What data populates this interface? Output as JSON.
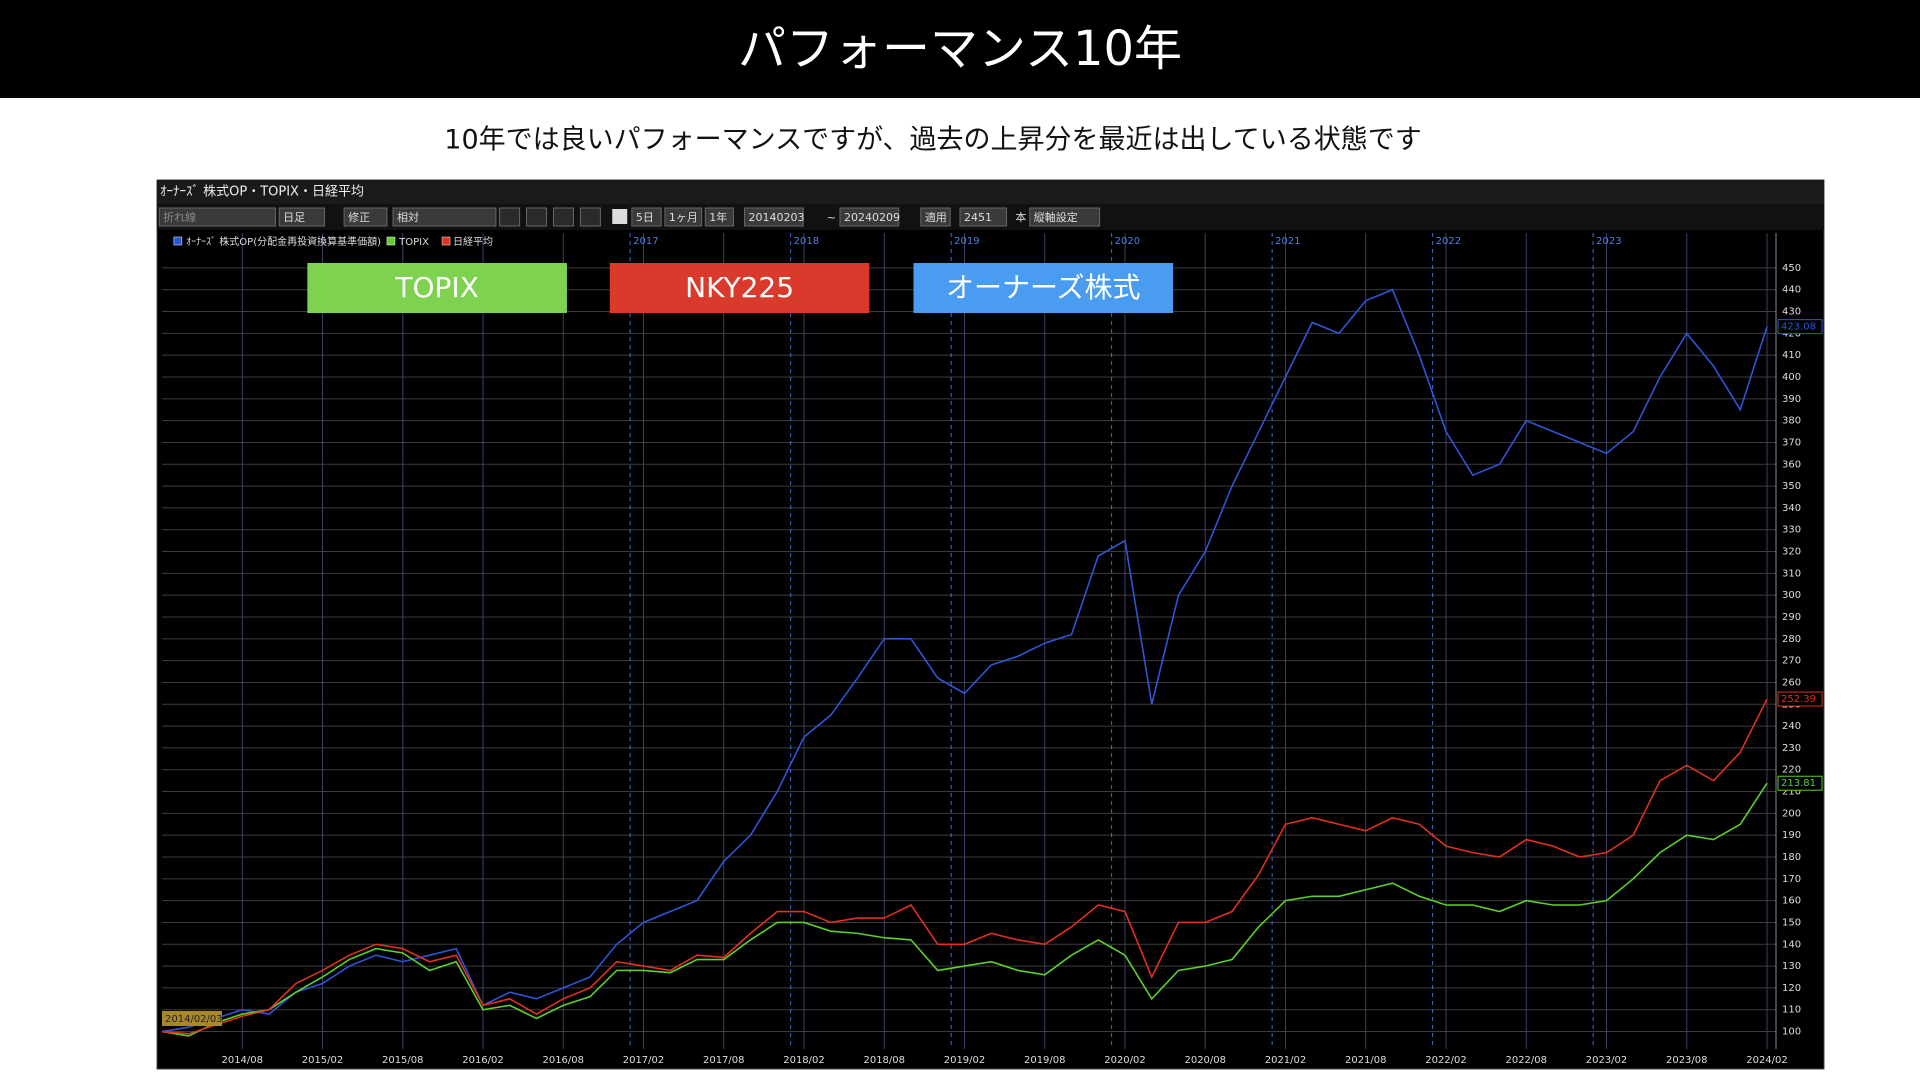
{
  "slide": {
    "title": "パフォーマンス10年",
    "subtitle": "10年では良いパフォーマンスですが、過去の上昇分を最近は出している状態です"
  },
  "window": {
    "title": "ｵｰﾅｰｽﾞ 株式OP・TOPIX・日経平均",
    "toolbar": [
      "折れ線",
      "日足",
      "修正",
      "相対",
      "5日",
      "1ヶ月",
      "1年",
      "20140203",
      "~",
      "20240209",
      "適用",
      "2451",
      "本",
      "縦軸設定"
    ]
  },
  "chart_data": {
    "type": "line",
    "x": [
      "2014/02",
      "2014/04",
      "2014/06",
      "2014/08",
      "2014/10",
      "2014/12",
      "2015/02",
      "2015/04",
      "2015/06",
      "2015/08",
      "2015/10",
      "2015/12",
      "2016/02",
      "2016/04",
      "2016/06",
      "2016/08",
      "2016/10",
      "2016/12",
      "2017/02",
      "2017/04",
      "2017/06",
      "2017/08",
      "2017/10",
      "2017/12",
      "2018/02",
      "2018/04",
      "2018/06",
      "2018/08",
      "2018/10",
      "2018/12",
      "2019/02",
      "2019/04",
      "2019/06",
      "2019/08",
      "2019/10",
      "2019/12",
      "2020/02",
      "2020/04",
      "2020/06",
      "2020/08",
      "2020/10",
      "2020/12",
      "2021/02",
      "2021/04",
      "2021/06",
      "2021/08",
      "2021/10",
      "2021/12",
      "2022/02",
      "2022/04",
      "2022/06",
      "2022/08",
      "2022/10",
      "2022/12",
      "2023/02",
      "2023/04",
      "2023/06",
      "2023/08",
      "2023/10",
      "2023/12",
      "2024/02"
    ],
    "series": [
      {
        "name": "ｵｰﾅｰｽﾞ 株式OP(分配金再投資換算基準価額)",
        "color": "#2e55d6",
        "values": [
          100,
          102,
          106,
          110,
          108,
          118,
          122,
          130,
          135,
          132,
          135,
          138,
          112,
          118,
          115,
          120,
          125,
          140,
          150,
          155,
          160,
          178,
          190,
          210,
          235,
          245,
          262,
          280,
          280,
          262,
          255,
          268,
          272,
          278,
          282,
          318,
          325,
          250,
          300,
          320,
          350,
          375,
          400,
          425,
          420,
          435,
          440,
          410,
          375,
          355,
          360,
          380,
          375,
          370,
          365,
          375,
          400,
          420,
          405,
          385,
          423.08
        ]
      },
      {
        "name": "TOPIX",
        "color": "#5ccf2a",
        "values": [
          100,
          98,
          104,
          108,
          110,
          118,
          125,
          133,
          138,
          136,
          128,
          132,
          110,
          112,
          106,
          112,
          116,
          128,
          128,
          127,
          133,
          133,
          142,
          150,
          150,
          146,
          145,
          143,
          142,
          128,
          130,
          132,
          128,
          126,
          135,
          142,
          135,
          115,
          128,
          130,
          133,
          148,
          160,
          162,
          162,
          165,
          168,
          162,
          158,
          158,
          155,
          160,
          158,
          158,
          160,
          170,
          182,
          190,
          188,
          195,
          213.81
        ]
      },
      {
        "name": "日経平均",
        "color": "#e0301e",
        "values": [
          100,
          99,
          103,
          107,
          110,
          122,
          128,
          135,
          140,
          138,
          132,
          135,
          112,
          115,
          108,
          115,
          120,
          132,
          130,
          128,
          135,
          134,
          145,
          155,
          155,
          150,
          152,
          152,
          158,
          140,
          140,
          145,
          142,
          140,
          148,
          158,
          155,
          125,
          150,
          150,
          155,
          172,
          195,
          198,
          195,
          192,
          198,
          195,
          185,
          182,
          180,
          188,
          185,
          180,
          182,
          190,
          215,
          222,
          215,
          228,
          252.39
        ]
      }
    ],
    "ylim": [
      92,
      466
    ],
    "yticks": [
      100,
      110,
      120,
      130,
      140,
      150,
      160,
      170,
      180,
      190,
      200,
      210,
      220,
      230,
      240,
      250,
      260,
      270,
      280,
      290,
      300,
      310,
      320,
      330,
      340,
      350,
      360,
      370,
      380,
      390,
      400,
      410,
      420,
      430,
      440,
      450
    ],
    "xticks": [
      "2014/08",
      "2015/02",
      "2015/08",
      "2016/02",
      "2016/08",
      "2017/02",
      "2017/08",
      "2018/02",
      "2018/08",
      "2019/02",
      "2019/08",
      "2020/02",
      "2020/08",
      "2021/02",
      "2021/08",
      "2022/02",
      "2022/08",
      "2023/02",
      "2023/08",
      "2024/02"
    ],
    "year_markers": [
      "2017",
      "2018",
      "2019",
      "2020",
      "2021",
      "2022",
      "2023"
    ],
    "start_label": "2014/02/03",
    "grid": true,
    "annotations": [
      {
        "text": "TOPIX",
        "color": "#7fd24f"
      },
      {
        "text": "NKY225",
        "color": "#d93a2b"
      },
      {
        "text": "オーナーズ株式",
        "color": "#4a9cf0"
      }
    ]
  }
}
